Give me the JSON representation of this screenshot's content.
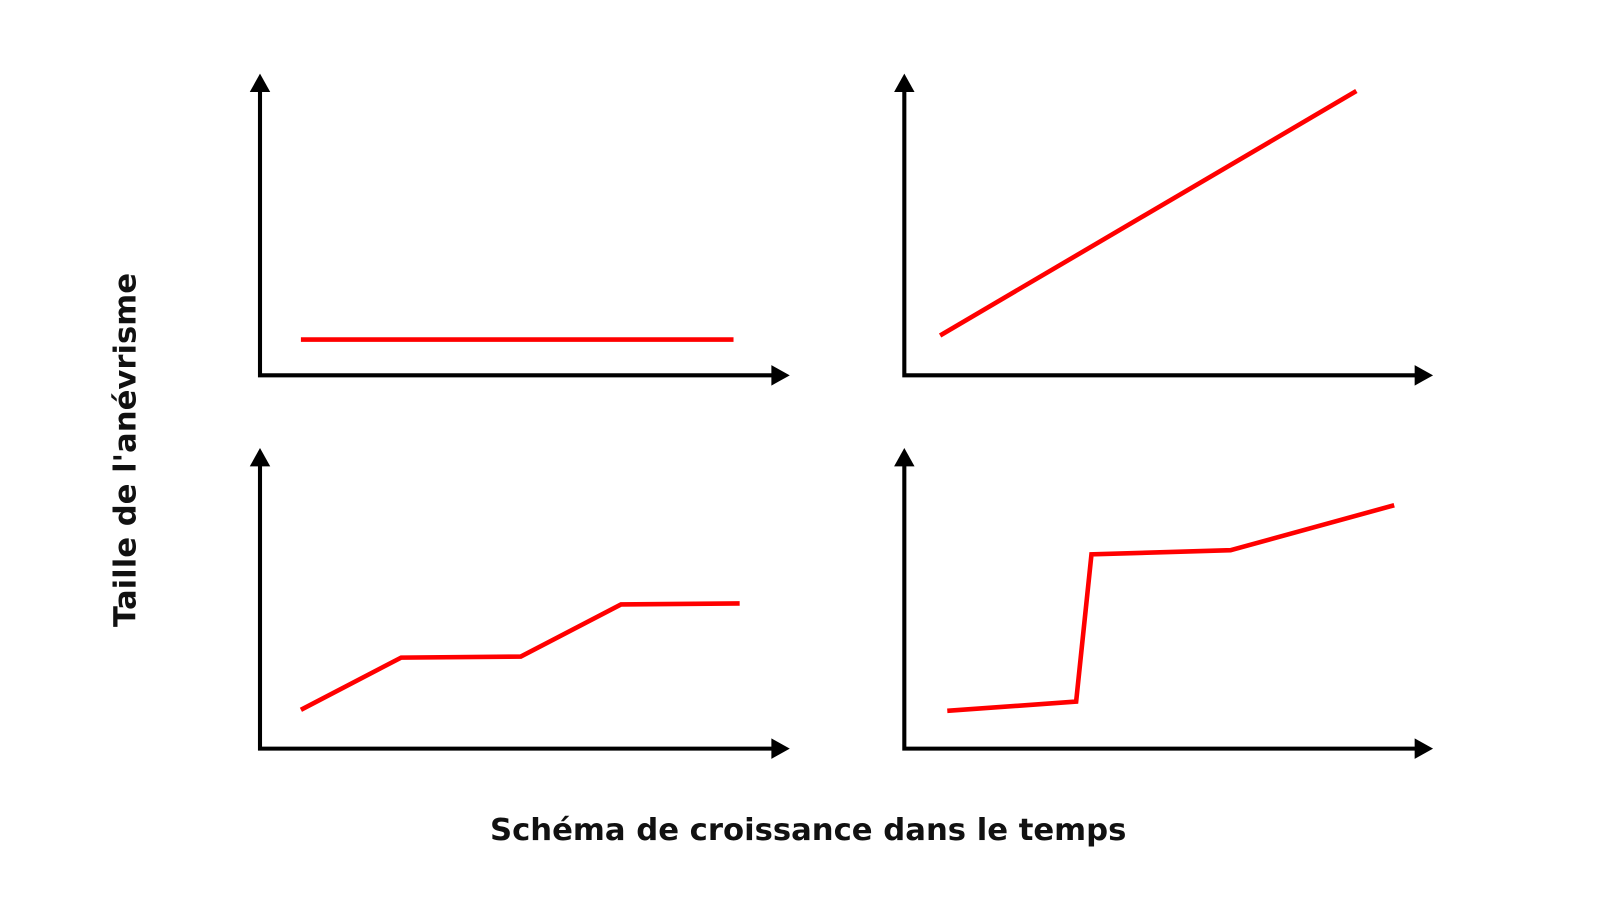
{
  "axis_labels": {
    "y": "Taille de l'anévrisme",
    "x": "Schéma de croissance dans le temps"
  }
}
